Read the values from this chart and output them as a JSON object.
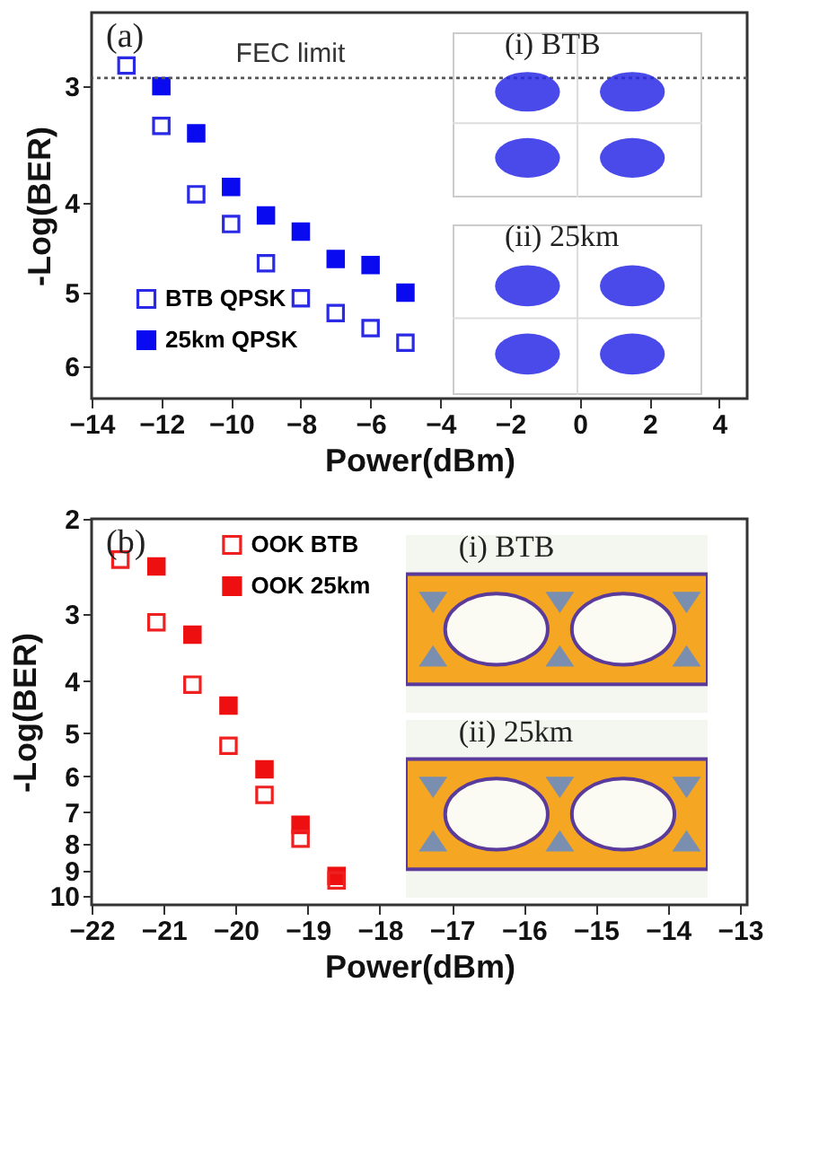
{
  "chart_data": [
    {
      "type": "scatter",
      "xlabel": "Power(dBm)",
      "ylabel": "-Log(BER)",
      "x": [
        -13,
        -12,
        -11,
        -10,
        -9,
        -8,
        -7,
        -6,
        -5
      ],
      "series": [
        {
          "name": "BTB  QPSK",
          "color": "#2a2ae6",
          "values": [
            2.85,
            3.31,
            3.92,
            4.22,
            4.65,
            5.07,
            5.26,
            5.46,
            5.66
          ]
        },
        {
          "name": "25km QPSK",
          "color": "#0a0af0",
          "x": [
            -12,
            -11,
            -10,
            -9,
            -8,
            -7,
            -6,
            -5
          ],
          "values": [
            3.0,
            3.37,
            3.85,
            4.13,
            4.3,
            4.6,
            4.67,
            5.0
          ]
        }
      ],
      "xlim": [
        -14,
        4.8
      ],
      "xticks": [
        -14,
        -12,
        -10,
        -8,
        -6,
        -4,
        -2,
        0,
        2,
        4
      ],
      "ylim": [
        6.5,
        2.5
      ],
      "yticks": [
        3,
        4,
        5,
        6
      ],
      "log": "y",
      "ref_lines": [
        {
          "axis": "y",
          "value": 2.94,
          "label": "FEC limit",
          "line_style": "dotted",
          "color": "#555555"
        }
      ],
      "annotations": [
        "(a)",
        "(i) BTB",
        "(ii) 25km"
      ],
      "legend": "bottom left",
      "marker": "square",
      "grid": false
    },
    {
      "type": "scatter",
      "xlabel": "Power(dBm)",
      "ylabel": "-Log(BER)",
      "x": [
        -21.6,
        -21.1,
        -20.6,
        -20.1,
        -19.6,
        -19.1,
        -18.6
      ],
      "series": [
        {
          "name": "OOK BTB",
          "color": "#ee2020",
          "values": [
            2.38,
            3.11,
            4.06,
            5.27,
            6.5,
            7.84,
            9.37
          ]
        },
        {
          "name": "OOK 25km",
          "color": "#ee1010",
          "x": [
            -21.1,
            -20.6,
            -20.1,
            -19.6,
            -19.1,
            -18.6
          ],
          "values": [
            2.45,
            3.28,
            4.44,
            5.83,
            7.39,
            9.19
          ]
        }
      ],
      "xlim": [
        -22,
        -12.9
      ],
      "xticks": [
        -22,
        -21,
        -20,
        -19,
        -18,
        -17,
        -16,
        -15,
        -14,
        -13
      ],
      "ylim": [
        10.4,
        2
      ],
      "yticks": [
        2,
        3,
        4,
        5,
        6,
        7,
        8,
        9,
        10
      ],
      "log": "y",
      "annotations": [
        "(b)",
        "(i) BTB",
        "(ii) 25km"
      ],
      "legend": "top",
      "marker": "square",
      "grid": false
    }
  ]
}
